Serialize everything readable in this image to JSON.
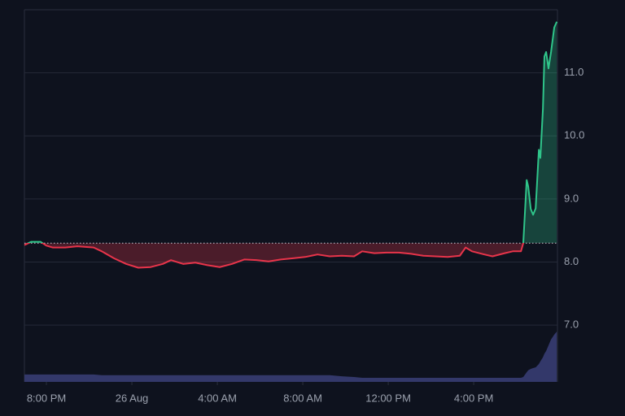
{
  "chart_data": {
    "type": "baseline-line",
    "x": [
      -1.03,
      -0.72,
      -0.27,
      0,
      0.3,
      0.88,
      1.45,
      2.21,
      2.59,
      3.16,
      3.73,
      4.3,
      4.88,
      5.45,
      5.83,
      6.4,
      6.97,
      7.54,
      8.11,
      8.69,
      9.26,
      9.83,
      10.4,
      10.97,
      11.54,
      12.11,
      12.69,
      13.26,
      13.83,
      14.4,
      14.78,
      15.35,
      15.92,
      16.5,
      17.07,
      17.64,
      18.21,
      18.78,
      19.35,
      19.62,
      19.92,
      20.5,
      20.88,
      21.45,
      21.83,
      22.21,
      22.32,
      22.48,
      22.55,
      22.67,
      22.78,
      22.9,
      23.05,
      23.12,
      23.24,
      23.31,
      23.39,
      23.5,
      23.62,
      23.77,
      23.89
    ],
    "baseline": 8.3,
    "series": [
      {
        "up_color": "#2fc58a",
        "down_color": "#e8344a",
        "values": [
          8.27,
          8.32,
          8.32,
          8.26,
          8.23,
          8.23,
          8.25,
          8.23,
          8.17,
          8.06,
          7.97,
          7.91,
          7.92,
          7.97,
          8.03,
          7.97,
          7.99,
          7.95,
          7.92,
          7.97,
          8.04,
          8.03,
          8.01,
          8.04,
          8.06,
          8.08,
          8.12,
          8.09,
          8.1,
          8.09,
          8.17,
          8.14,
          8.15,
          8.15,
          8.13,
          8.1,
          8.09,
          8.08,
          8.1,
          8.23,
          8.17,
          8.12,
          8.09,
          8.14,
          8.17,
          8.17,
          8.3,
          9.3,
          9.2,
          8.84,
          8.75,
          8.85,
          9.78,
          9.65,
          10.43,
          11.26,
          11.33,
          11.07,
          11.33,
          11.72,
          11.81
        ]
      },
      {
        "axis": "y2",
        "color": "#33386a",
        "values": [
          2.0,
          2.0,
          2.0,
          2.0,
          2.0,
          2.0,
          2.0,
          2.0,
          1.8,
          1.8,
          1.8,
          1.8,
          1.8,
          1.8,
          1.8,
          1.8,
          1.8,
          1.8,
          1.8,
          1.8,
          1.8,
          1.8,
          1.8,
          1.8,
          1.8,
          1.8,
          1.8,
          1.8,
          1.5,
          1.3,
          1.1,
          1.1,
          1.1,
          1.1,
          1.1,
          1.1,
          1.1,
          1.1,
          1.1,
          1.1,
          1.1,
          1.1,
          1.1,
          1.1,
          1.1,
          1.1,
          1.3,
          2.6,
          3.1,
          3.5,
          3.7,
          3.9,
          4.8,
          5.5,
          6.6,
          7.6,
          8.3,
          9.8,
          11.4,
          12.7,
          13.5
        ]
      }
    ],
    "xlim": [
      -1.03,
      23.92
    ],
    "xticks": [
      {
        "value": 0,
        "label": "8:00 PM"
      },
      {
        "value": 4,
        "label": "26 Aug"
      },
      {
        "value": 8,
        "label": "4:00 AM"
      },
      {
        "value": 12,
        "label": "8:00 AM"
      },
      {
        "value": 16,
        "label": "12:00 PM"
      },
      {
        "value": 20,
        "label": "4:00 PM"
      }
    ],
    "ylim": [
      6.1,
      12.0
    ],
    "yticks": [
      {
        "value": 7,
        "label": "7.0"
      },
      {
        "value": 8,
        "label": "8.0"
      },
      {
        "value": 9,
        "label": "9.0"
      },
      {
        "value": 10,
        "label": "10.0"
      },
      {
        "value": 11,
        "label": "11.0"
      }
    ],
    "y2lim": [
      0,
      100
    ],
    "grid": true
  }
}
